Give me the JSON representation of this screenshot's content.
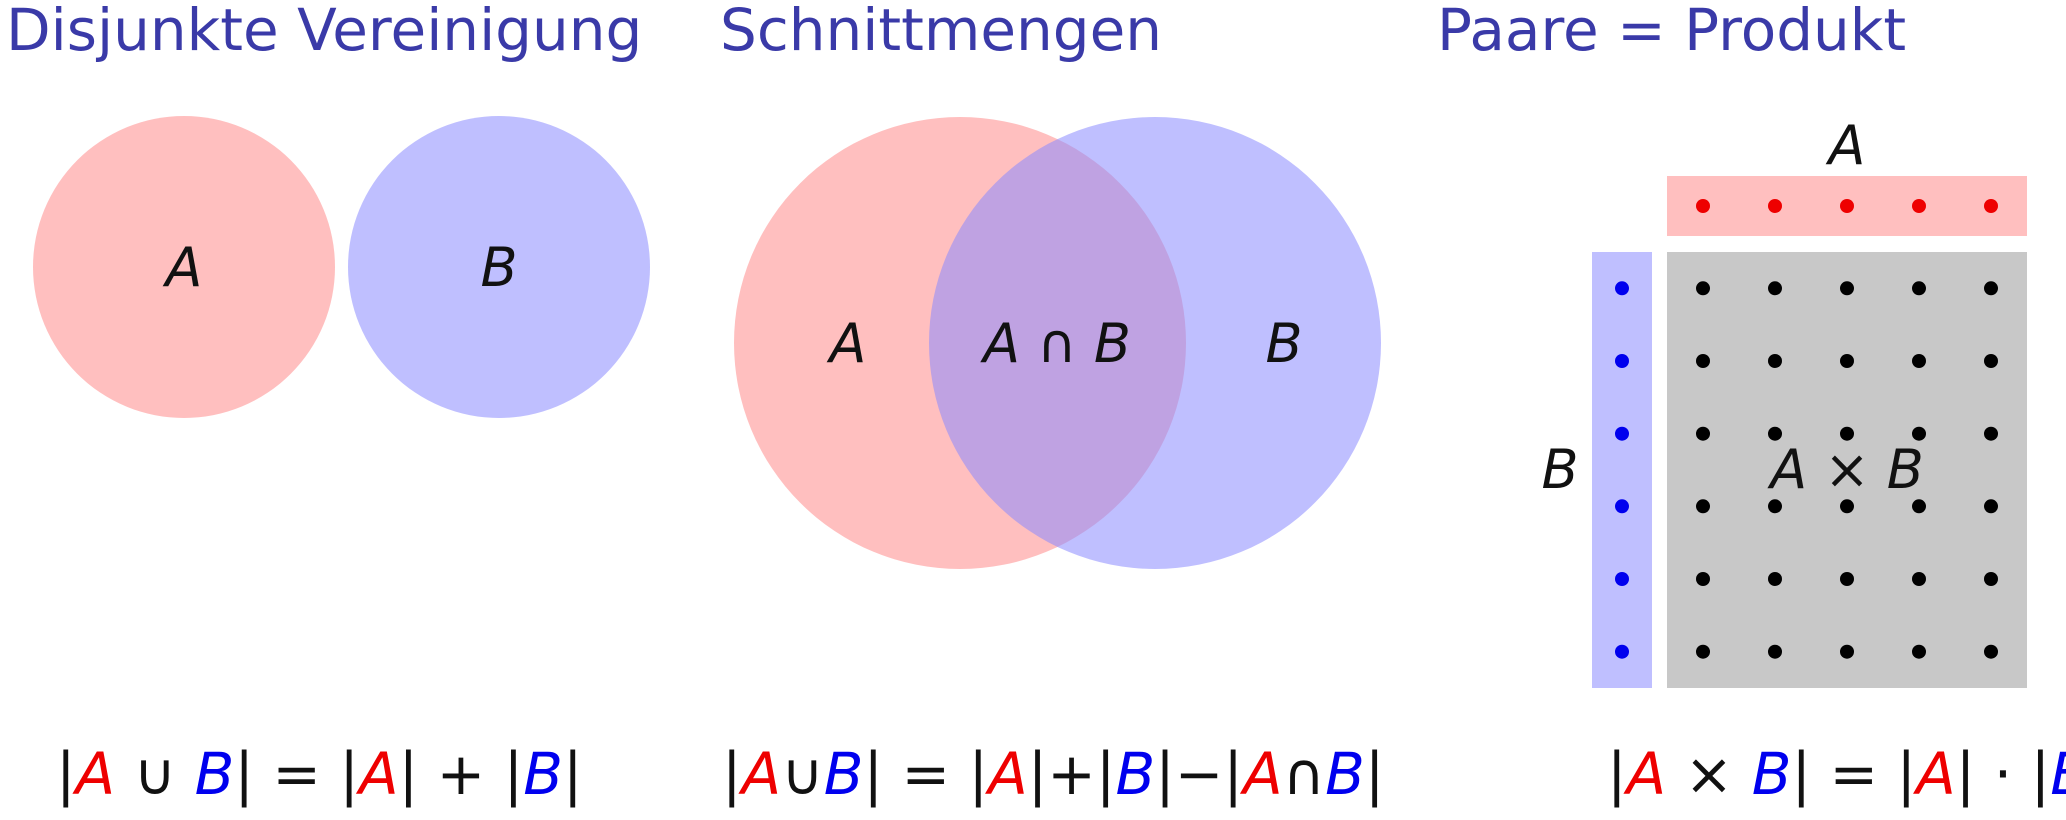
{
  "colors": {
    "title": "#3a3aa8",
    "set_a_fill": "#ff8a8a",
    "set_b_fill": "#8a8aff",
    "set_a_dot": "#ee0000",
    "set_b_dot": "#0000ee",
    "product_fill": "#c8c8c8",
    "text": "#111111"
  },
  "panels": {
    "disjoint": {
      "title": "Disjunkte Vereinigung",
      "label_a": "A",
      "label_b": "B",
      "formula": {
        "bar1": "|",
        "a": "A",
        "cup": " ∪ ",
        "b": "B",
        "bar2": "|",
        "eq": " = ",
        "bar3": "|",
        "a2": "A",
        "bar4": "|",
        "plus": " + ",
        "bar5": "|",
        "b2": "B",
        "bar6": "|"
      }
    },
    "intersection": {
      "title": "Schnittmengen",
      "label_a": "A",
      "label_b": "B",
      "label_ab": "A ∩ B",
      "formula": {
        "bar1": "|",
        "a": "A",
        "cup": "∪",
        "b": "B",
        "bar2": "|",
        "eq": " = ",
        "bar3": "|",
        "a2": "A",
        "bar4": "|",
        "plus": "+",
        "bar5": "|",
        "b2": "B",
        "bar6": "|",
        "minus": "−",
        "bar7": "|",
        "a3": "A",
        "cap": "∩",
        "b3": "B",
        "bar8": "|"
      }
    },
    "product": {
      "title": "Paare = Produkt",
      "label_a": "A",
      "label_b": "B",
      "label_axb": "A × B",
      "count_a": 5,
      "count_b": 6,
      "formula": {
        "bar1": "|",
        "a": "A",
        "times": " × ",
        "b": "B",
        "bar2": "|",
        "eq": " = ",
        "bar3": "|",
        "a2": "A",
        "bar4": "|",
        "dot": " · ",
        "bar5": "|",
        "b2": "B",
        "bar6": "|"
      }
    }
  }
}
